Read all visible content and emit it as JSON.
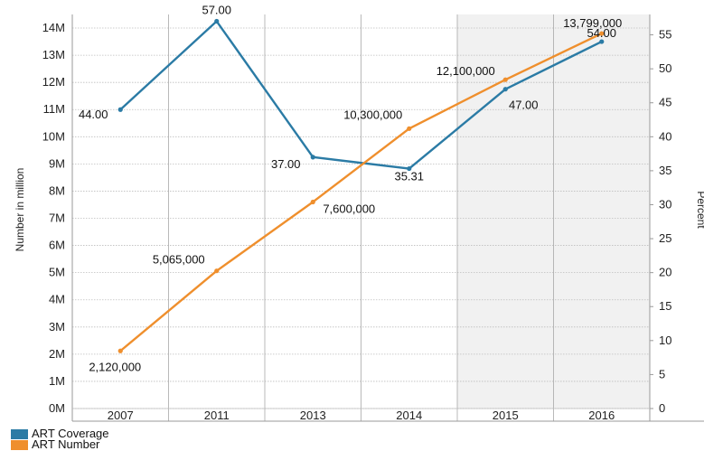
{
  "chart_data": {
    "type": "line",
    "categories": [
      "2007",
      "2011",
      "2013",
      "2014",
      "2015",
      "2016"
    ],
    "y_left": {
      "label": "Number in million",
      "ticks": [
        "0M",
        "1M",
        "2M",
        "3M",
        "4M",
        "5M",
        "6M",
        "7M",
        "8M",
        "9M",
        "10M",
        "11M",
        "12M",
        "13M",
        "14M"
      ],
      "range": [
        0,
        14.5
      ]
    },
    "y_right": {
      "label": "Percent",
      "ticks": [
        "0",
        "5",
        "10",
        "15",
        "20",
        "25",
        "30",
        "35",
        "40",
        "45",
        "50",
        "55"
      ],
      "range": [
        0,
        58
      ]
    },
    "series": [
      {
        "name": "ART Coverage",
        "axis": "right",
        "color": "#2b7ba5",
        "values": [
          44.0,
          57.0,
          37.0,
          35.31,
          47.0,
          54.0
        ],
        "labels": [
          "44.00",
          "57.00",
          "37.00",
          "35.31",
          "47.00",
          "54.00"
        ]
      },
      {
        "name": "ART Number",
        "axis": "left",
        "color": "#ef8f2d",
        "values": [
          2120000,
          5065000,
          7600000,
          10300000,
          12100000,
          13799000
        ],
        "labels": [
          "2,120,000",
          "5,065,000",
          "7,600,000",
          "10,300,000",
          "12,100,000",
          "13,799,000"
        ]
      }
    ],
    "shaded_categories": [
      "2015",
      "2016"
    ],
    "grid": true,
    "legend_position": "bottom-left"
  }
}
